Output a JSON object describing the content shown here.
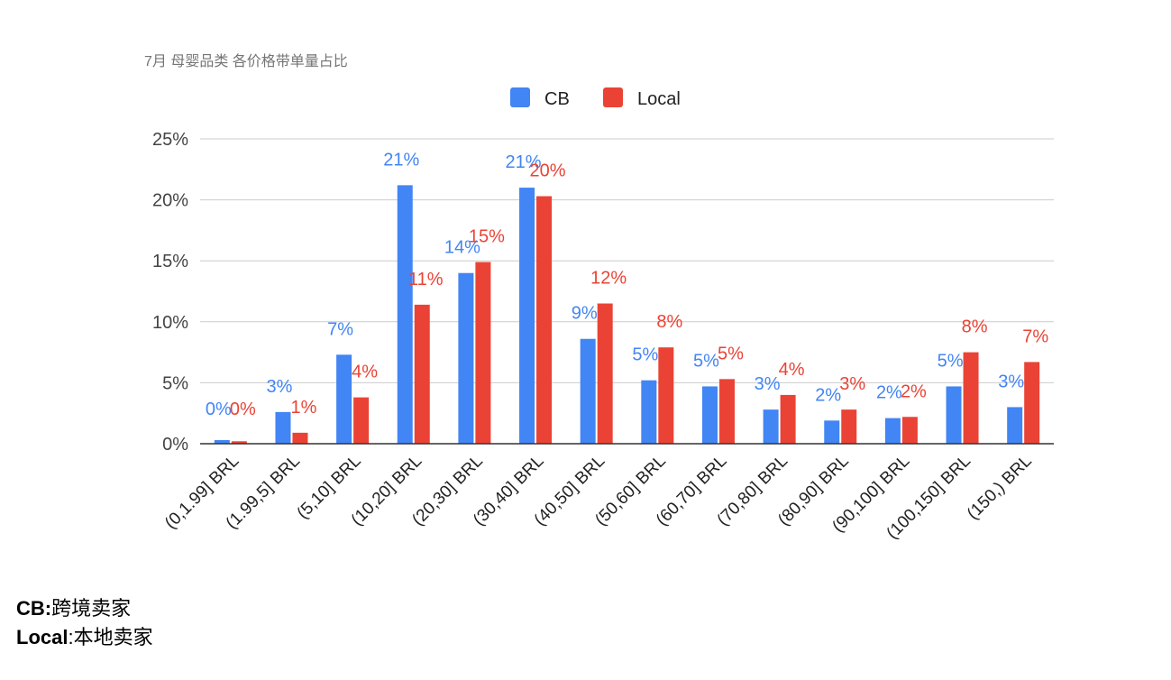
{
  "chart_data": {
    "type": "bar",
    "title": "7月 母婴品类 各价格带单量占比",
    "categories": [
      "(0,1.99] BRL",
      "(1.99,5] BRL",
      "(5,10] BRL",
      "(10,20] BRL",
      "(20,30] BRL",
      "(30,40] BRL",
      "(40,50] BRL",
      "(50,60] BRL",
      "(60,70] BRL",
      "(70,80] BRL",
      "(80,90] BRL",
      "(90,100] BRL",
      "(100,150] BRL",
      "(150,) BRL"
    ],
    "series": [
      {
        "name": "CB",
        "color": "#4285F4",
        "values": [
          0.3,
          2.6,
          7.3,
          21.2,
          14.0,
          21.0,
          8.6,
          5.2,
          4.7,
          2.8,
          1.9,
          2.1,
          4.7,
          3.0
        ],
        "labels": [
          "0%",
          "3%",
          "7%",
          "21%",
          "14%",
          "21%",
          "9%",
          "5%",
          "5%",
          "3%",
          "2%",
          "2%",
          "5%",
          "3%"
        ]
      },
      {
        "name": "Local",
        "color": "#EA4335",
        "values": [
          0.2,
          0.9,
          3.8,
          11.4,
          14.9,
          20.3,
          11.5,
          7.9,
          5.3,
          4.0,
          2.8,
          2.2,
          7.5,
          6.7
        ],
        "labels": [
          "0%",
          "1%",
          "4%",
          "11%",
          "15%",
          "20%",
          "12%",
          "8%",
          "5%",
          "4%",
          "3%",
          "2%",
          "8%",
          "7%"
        ]
      }
    ],
    "xlabel": "",
    "ylabel": "",
    "ylim": [
      0,
      25
    ],
    "yticks": [
      0,
      5,
      10,
      15,
      20,
      25
    ],
    "ytick_labels": [
      "0%",
      "5%",
      "10%",
      "15%",
      "20%",
      "25%"
    ],
    "grid": true,
    "legend_position": "top-center"
  },
  "footnote": {
    "cb_key": "CB:",
    "cb_desc": "跨境卖家",
    "local_key": "Local",
    "local_sep": ":",
    "local_desc": "本地卖家"
  }
}
